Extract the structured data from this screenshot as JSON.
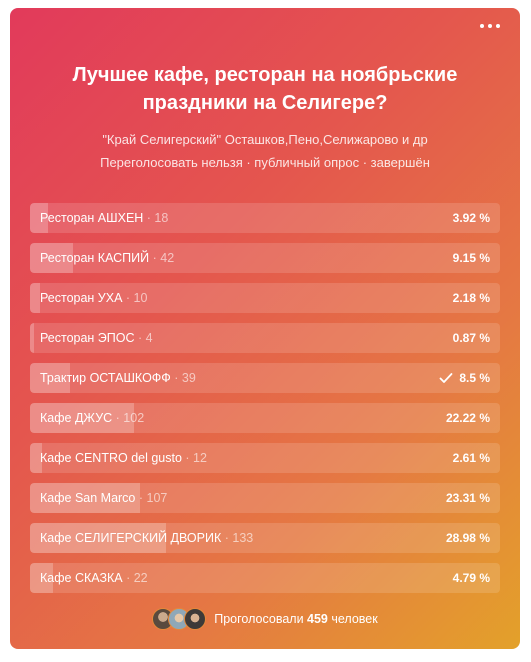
{
  "poll": {
    "title": "Лучшее кафе, ресторан на ноябрьские праздники на Селигере?",
    "subtitle": "\"Край Селигерский\" Осташков,Пено,Селижарово и др",
    "meta": "Переголосовать нельзя · публичный опрос · завершён",
    "options": [
      {
        "label": "Ресторан АШХЕН",
        "count": " · 18",
        "percent": "3.92 %",
        "fraction": 0.0392,
        "voted": false
      },
      {
        "label": "Ресторан КАСПИЙ",
        "count": " · 42",
        "percent": "9.15 %",
        "fraction": 0.0915,
        "voted": false
      },
      {
        "label": "Ресторан УХА",
        "count": " · 10",
        "percent": "2.18 %",
        "fraction": 0.0218,
        "voted": false
      },
      {
        "label": "Ресторан ЭПОС",
        "count": " · 4",
        "percent": "0.87 %",
        "fraction": 0.0087,
        "voted": false
      },
      {
        "label": "Трактир ОСТАШКОФФ",
        "count": " · 39",
        "percent": "8.5 %",
        "fraction": 0.085,
        "voted": true
      },
      {
        "label": "Кафе ДЖУС",
        "count": " · 102",
        "percent": "22.22 %",
        "fraction": 0.2222,
        "voted": false
      },
      {
        "label": "Кафе CENTRO del gusto",
        "count": " · 12",
        "percent": "2.61 %",
        "fraction": 0.0261,
        "voted": false
      },
      {
        "label": "Кафе San Marco",
        "count": " · 107",
        "percent": "23.31 %",
        "fraction": 0.2331,
        "voted": false
      },
      {
        "label": "Кафе СЕЛИГЕРСКИЙ ДВОРИК",
        "count": " · 133",
        "percent": "28.98 %",
        "fraction": 0.2898,
        "voted": false
      },
      {
        "label": "Кафе СКАЗКА",
        "count": " · 22",
        "percent": "4.79 %",
        "fraction": 0.0479,
        "voted": false
      }
    ],
    "footer": {
      "prefix": "Проголосовали ",
      "total": "459",
      "suffix": " человек"
    }
  },
  "colors": {
    "gradient_start": "#e23a5b",
    "gradient_end": "#e3a12a"
  },
  "icons": {
    "menu": "more-dots-icon",
    "voted": "check-icon"
  }
}
